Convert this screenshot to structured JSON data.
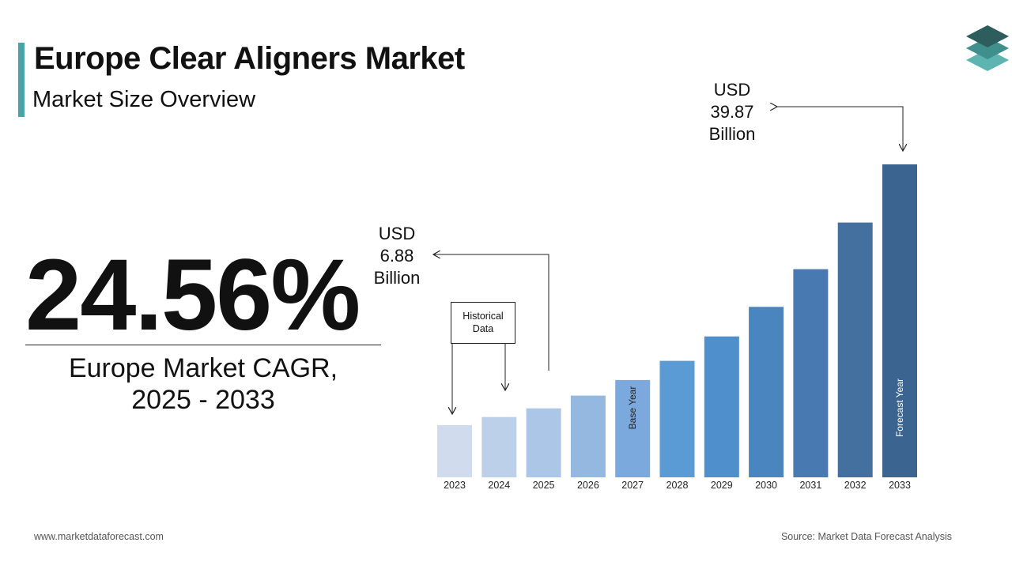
{
  "header": {
    "title": "Europe Clear Aligners Market",
    "subtitle": "Market Size Overview"
  },
  "highlight": {
    "cagr": "24.56%",
    "cagr_label_line1": "Europe Market CAGR,",
    "cagr_label_line2": "2025 - 2033"
  },
  "annotations": {
    "start_value": [
      "USD",
      "6.88",
      "Billion"
    ],
    "end_value": [
      "USD",
      "39.87",
      "Billion"
    ],
    "historical_box": [
      "Historical",
      "Data"
    ],
    "base_year_label": "Base Year",
    "forecast_year_label": "Forecast Year"
  },
  "footer": {
    "website": "www.marketdataforecast.com",
    "source": "Source: Market Data Forecast Analysis"
  },
  "colors": {
    "accent": "#4aa3a8",
    "bars": [
      "#d0dcee",
      "#bdd0ea",
      "#acc6e7",
      "#95b8e1",
      "#7ba9dd",
      "#5b9bd5",
      "#4f8fcc",
      "#4b85c0",
      "#4879b0",
      "#43709f",
      "#3b6590"
    ]
  },
  "chart_data": {
    "type": "bar",
    "categories": [
      "2023",
      "2024",
      "2025",
      "2026",
      "2027",
      "2028",
      "2029",
      "2030",
      "2031",
      "2032",
      "2033"
    ],
    "series": [
      {
        "values": [
          4.6,
          5.7,
          6.88,
          8.6,
          10.7,
          13.3,
          16.6,
          20.6,
          25.7,
          32.0,
          39.87
        ]
      }
    ],
    "value_labels": {
      "2025": "USD 6.88 Billion",
      "2033": "USD 39.87 Billion"
    },
    "bar_text": {
      "2027": "Base Year",
      "2033": "Forecast Year"
    },
    "title": "",
    "xlabel": "",
    "ylabel": "",
    "grid": false,
    "legend": "none"
  }
}
